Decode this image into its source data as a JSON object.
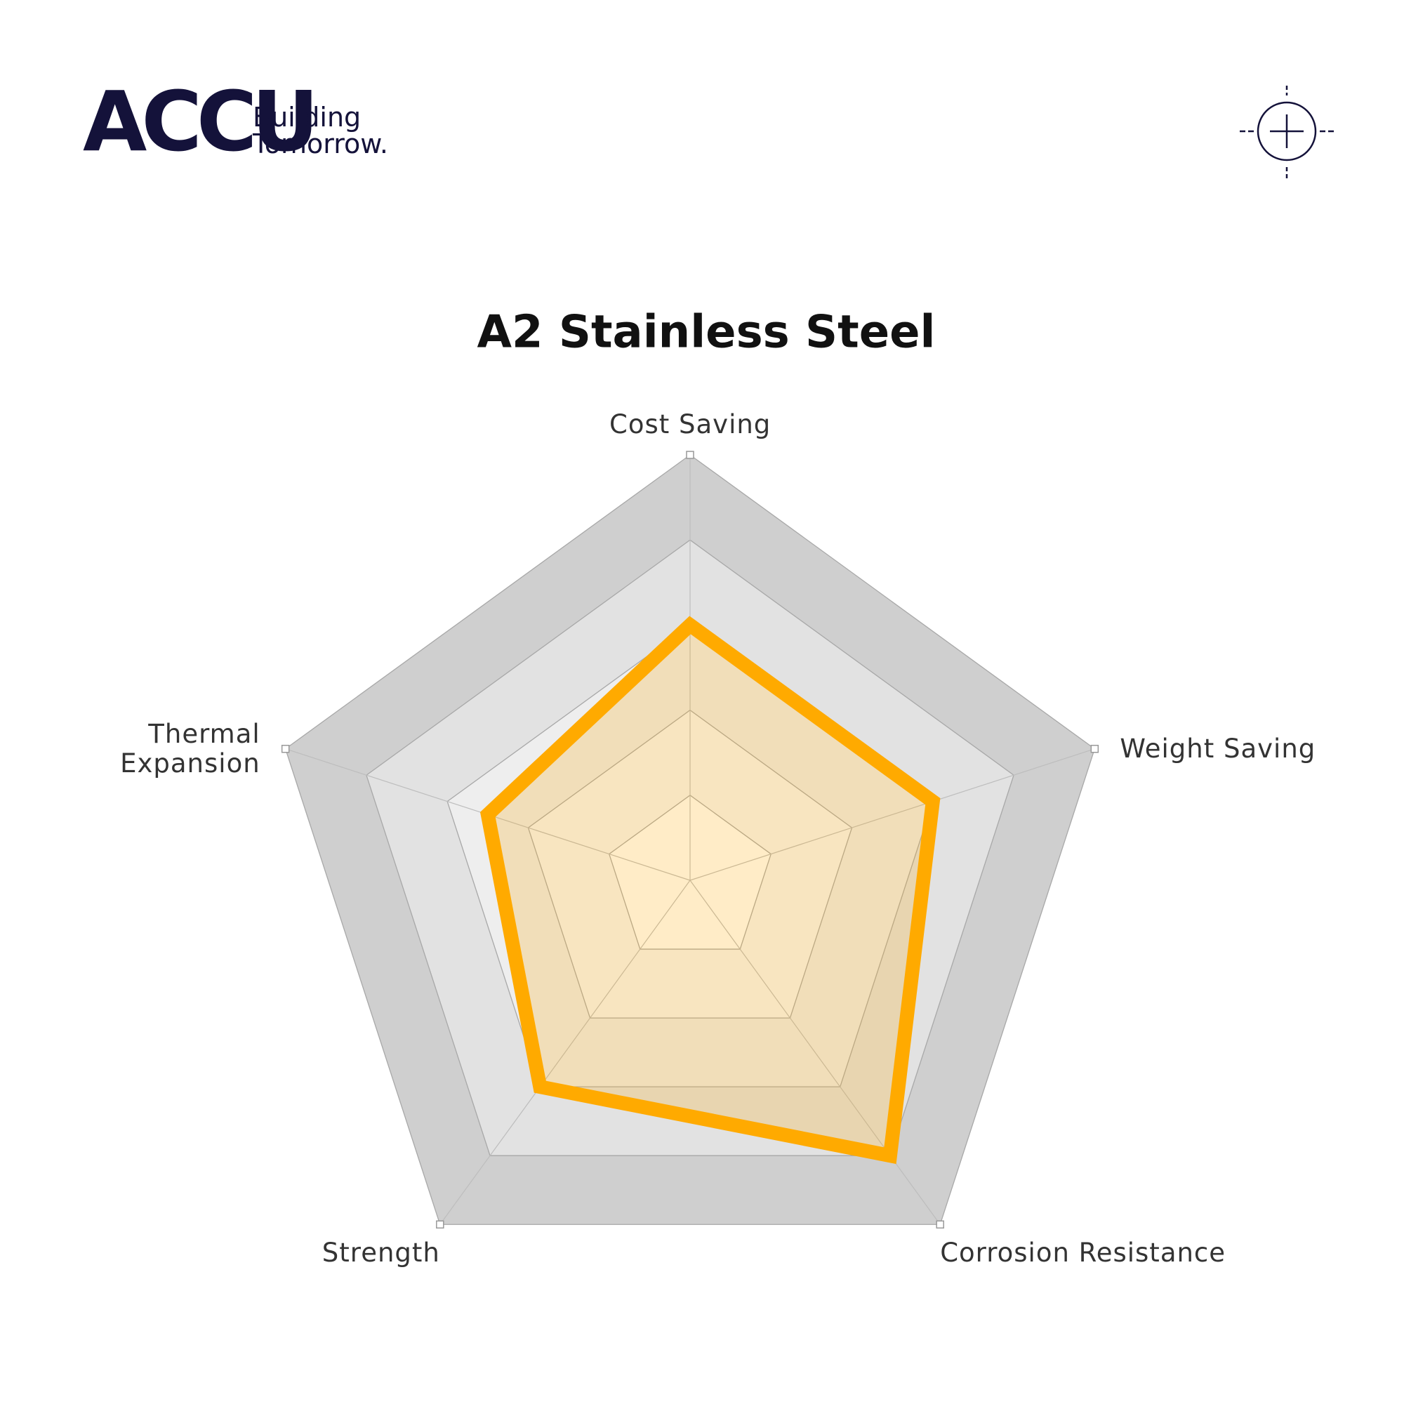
{
  "brand": {
    "name": "ACCU",
    "tagline": [
      "Building",
      "Tomorrow."
    ]
  },
  "chart_data": {
    "type": "radar",
    "title": "A2 Stainless Steel",
    "categories": [
      "Cost Saving",
      "Weight Saving",
      "Corrosion Resistance",
      "Strength",
      "Thermal Expansion"
    ],
    "values": [
      3,
      3,
      4,
      3,
      2.5
    ],
    "color": "#ffaa00",
    "rlim": [
      0,
      5
    ],
    "rticks": [
      1,
      2,
      3,
      4,
      5
    ],
    "grid": true
  }
}
